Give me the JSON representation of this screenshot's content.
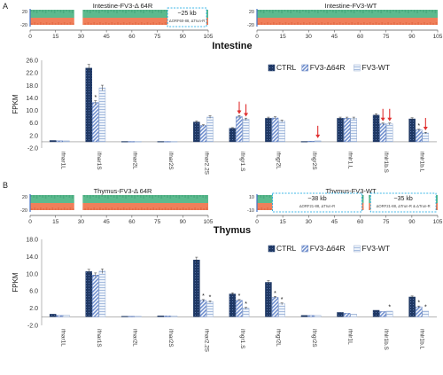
{
  "figure": {
    "panel_a_letter": "A",
    "panel_b_letter": "B",
    "panel_a_title": "Intestine",
    "panel_b_title": "Thymus"
  },
  "colors": {
    "ctrl": "#1f3864",
    "d64r": "#8eaadb",
    "wt": "#d6e4f5",
    "coverage_green": "#5cba8e",
    "coverage_orange": "#f07f5a",
    "arrow": "#e03030",
    "box": "#00a0e0"
  },
  "coverage_tracks": [
    {
      "id": "intestine_d64r",
      "title": "Intestine-FV3-Δ 64R",
      "ytick_top": "20",
      "ytick_bottom": "-20",
      "x_ticks": [
        "0",
        "15",
        "30",
        "45",
        "60",
        "75",
        "90",
        "105"
      ],
      "x_range": [
        0,
        105
      ],
      "gaps": [
        [
          26,
          31
        ]
      ],
      "annotation_box": {
        "x_range": [
          81,
          104
        ],
        "label_main": "~25 kb",
        "label_sub": "ΔORF60-88, ΔTrun-R"
      }
    },
    {
      "id": "intestine_wt",
      "title": "Intestine-FV3-WT",
      "ytick_top": "20",
      "ytick_bottom": "-20",
      "x_ticks": [
        "0",
        "15",
        "30",
        "45",
        "60",
        "75",
        "90",
        "105"
      ],
      "x_range": [
        0,
        105
      ],
      "gaps": [],
      "annotation_box": null
    },
    {
      "id": "thymus_d64r",
      "title": "Thymus-FV3-Δ 64R",
      "ytick_top": "20",
      "ytick_bottom": "-20",
      "x_ticks": [
        "0",
        "15",
        "30",
        "45",
        "60",
        "75",
        "90",
        "105"
      ],
      "x_range": [
        0,
        105
      ],
      "gaps": [
        [
          26,
          31
        ]
      ],
      "annotation_box": null
    },
    {
      "id": "thymus_wt",
      "title": "Thymus-FV3-WT",
      "ytick_top": "10",
      "ytick_bottom": "-10",
      "x_ticks": [
        "0",
        "15",
        "30",
        "45",
        "60",
        "75",
        "90",
        "105"
      ],
      "x_range": [
        0,
        105
      ],
      "gaps": [
        [
          62,
          65
        ]
      ],
      "annotation_box": {
        "x_range": [
          9,
          61
        ],
        "label_main": "~38 kb",
        "label_sub": "ΔORF21-88, ΔTrun-R"
      },
      "annotation_box2": {
        "x_range": [
          66,
          104
        ],
        "label_main": "~35 kb",
        "label_sub": "ΔORF21-88, ΔTrun-R & ΔTrun-R"
      }
    }
  ],
  "chart_data": [
    {
      "type": "bar",
      "title": "Intestine",
      "ylabel": "FPKM",
      "ylim": [
        -2.0,
        26.0
      ],
      "yticks": [
        "26.0",
        "22.0",
        "18.0",
        "14.0",
        "10.0",
        "6.0",
        "2.0",
        "-2.0"
      ],
      "categories": [
        "ifnar1L",
        "ifnar1S",
        "ifnar2L",
        "ifnar2S",
        "ifnar2.2S",
        "ifngr1.S",
        "ifngr2L",
        "ifngr2S",
        "ifnlr1.L",
        "ifnlr1b.S",
        "ifnlr1b.L"
      ],
      "series": [
        {
          "name": "CTRL",
          "values": [
            0.4,
            23.5,
            0.1,
            0.1,
            6.3,
            4.3,
            7.5,
            0.1,
            7.5,
            8.5,
            7.3
          ]
        },
        {
          "name": "FV3-Δ64R",
          "values": [
            0.3,
            12.5,
            0.1,
            0.1,
            5.2,
            8.0,
            7.6,
            0.2,
            7.5,
            5.7,
            3.8
          ]
        },
        {
          "name": "FV3-WT",
          "values": [
            0.3,
            17.2,
            0.1,
            0.1,
            7.9,
            7.2,
            6.6,
            0.3,
            7.5,
            5.7,
            2.8
          ]
        }
      ],
      "stars": [
        [
          1,
          1
        ],
        [
          5,
          1
        ],
        [
          9,
          1
        ],
        [
          9,
          2
        ],
        [
          10,
          1
        ]
      ],
      "arrows": [
        [
          5,
          1
        ],
        [
          5,
          2
        ],
        [
          7,
          2
        ],
        [
          9,
          1
        ],
        [
          9,
          2
        ],
        [
          10,
          2
        ]
      ],
      "legend": "top-right"
    },
    {
      "type": "bar",
      "title": "Thymus",
      "ylabel": "FPKM",
      "ylim": [
        -2.0,
        18.0
      ],
      "yticks": [
        "18.0",
        "14.0",
        "10.0",
        "6.0",
        "2.0",
        "-2.0"
      ],
      "categories": [
        "ifnar1L",
        "ifnar1S",
        "ifnar2L",
        "ifnar2S",
        "ifnar2.2S",
        "ifngr1.S",
        "ifngr2L",
        "ifngr2S",
        "ifnlr1L",
        "ifnlr1b.S",
        "ifnlr1b.L"
      ],
      "series": [
        {
          "name": "CTRL",
          "values": [
            0.6,
            10.5,
            0.1,
            0.2,
            13.2,
            5.3,
            8.0,
            0.3,
            1.0,
            1.5,
            4.6
          ]
        },
        {
          "name": "FV3-Δ64R",
          "values": [
            0.3,
            9.7,
            0.1,
            0.2,
            3.8,
            3.8,
            4.5,
            0.3,
            0.8,
            1.2,
            2.3
          ]
        },
        {
          "name": "FV3-WT",
          "values": [
            0.4,
            10.6,
            0.1,
            0.2,
            3.5,
            2.0,
            3.0,
            0.3,
            0.6,
            1.3,
            1.3
          ]
        }
      ],
      "stars": [
        [
          4,
          1
        ],
        [
          4,
          2
        ],
        [
          5,
          1
        ],
        [
          5,
          2
        ],
        [
          6,
          1
        ],
        [
          6,
          2
        ],
        [
          9,
          2
        ],
        [
          10,
          1
        ],
        [
          10,
          2
        ]
      ],
      "arrows": [],
      "legend": "top-right"
    }
  ]
}
